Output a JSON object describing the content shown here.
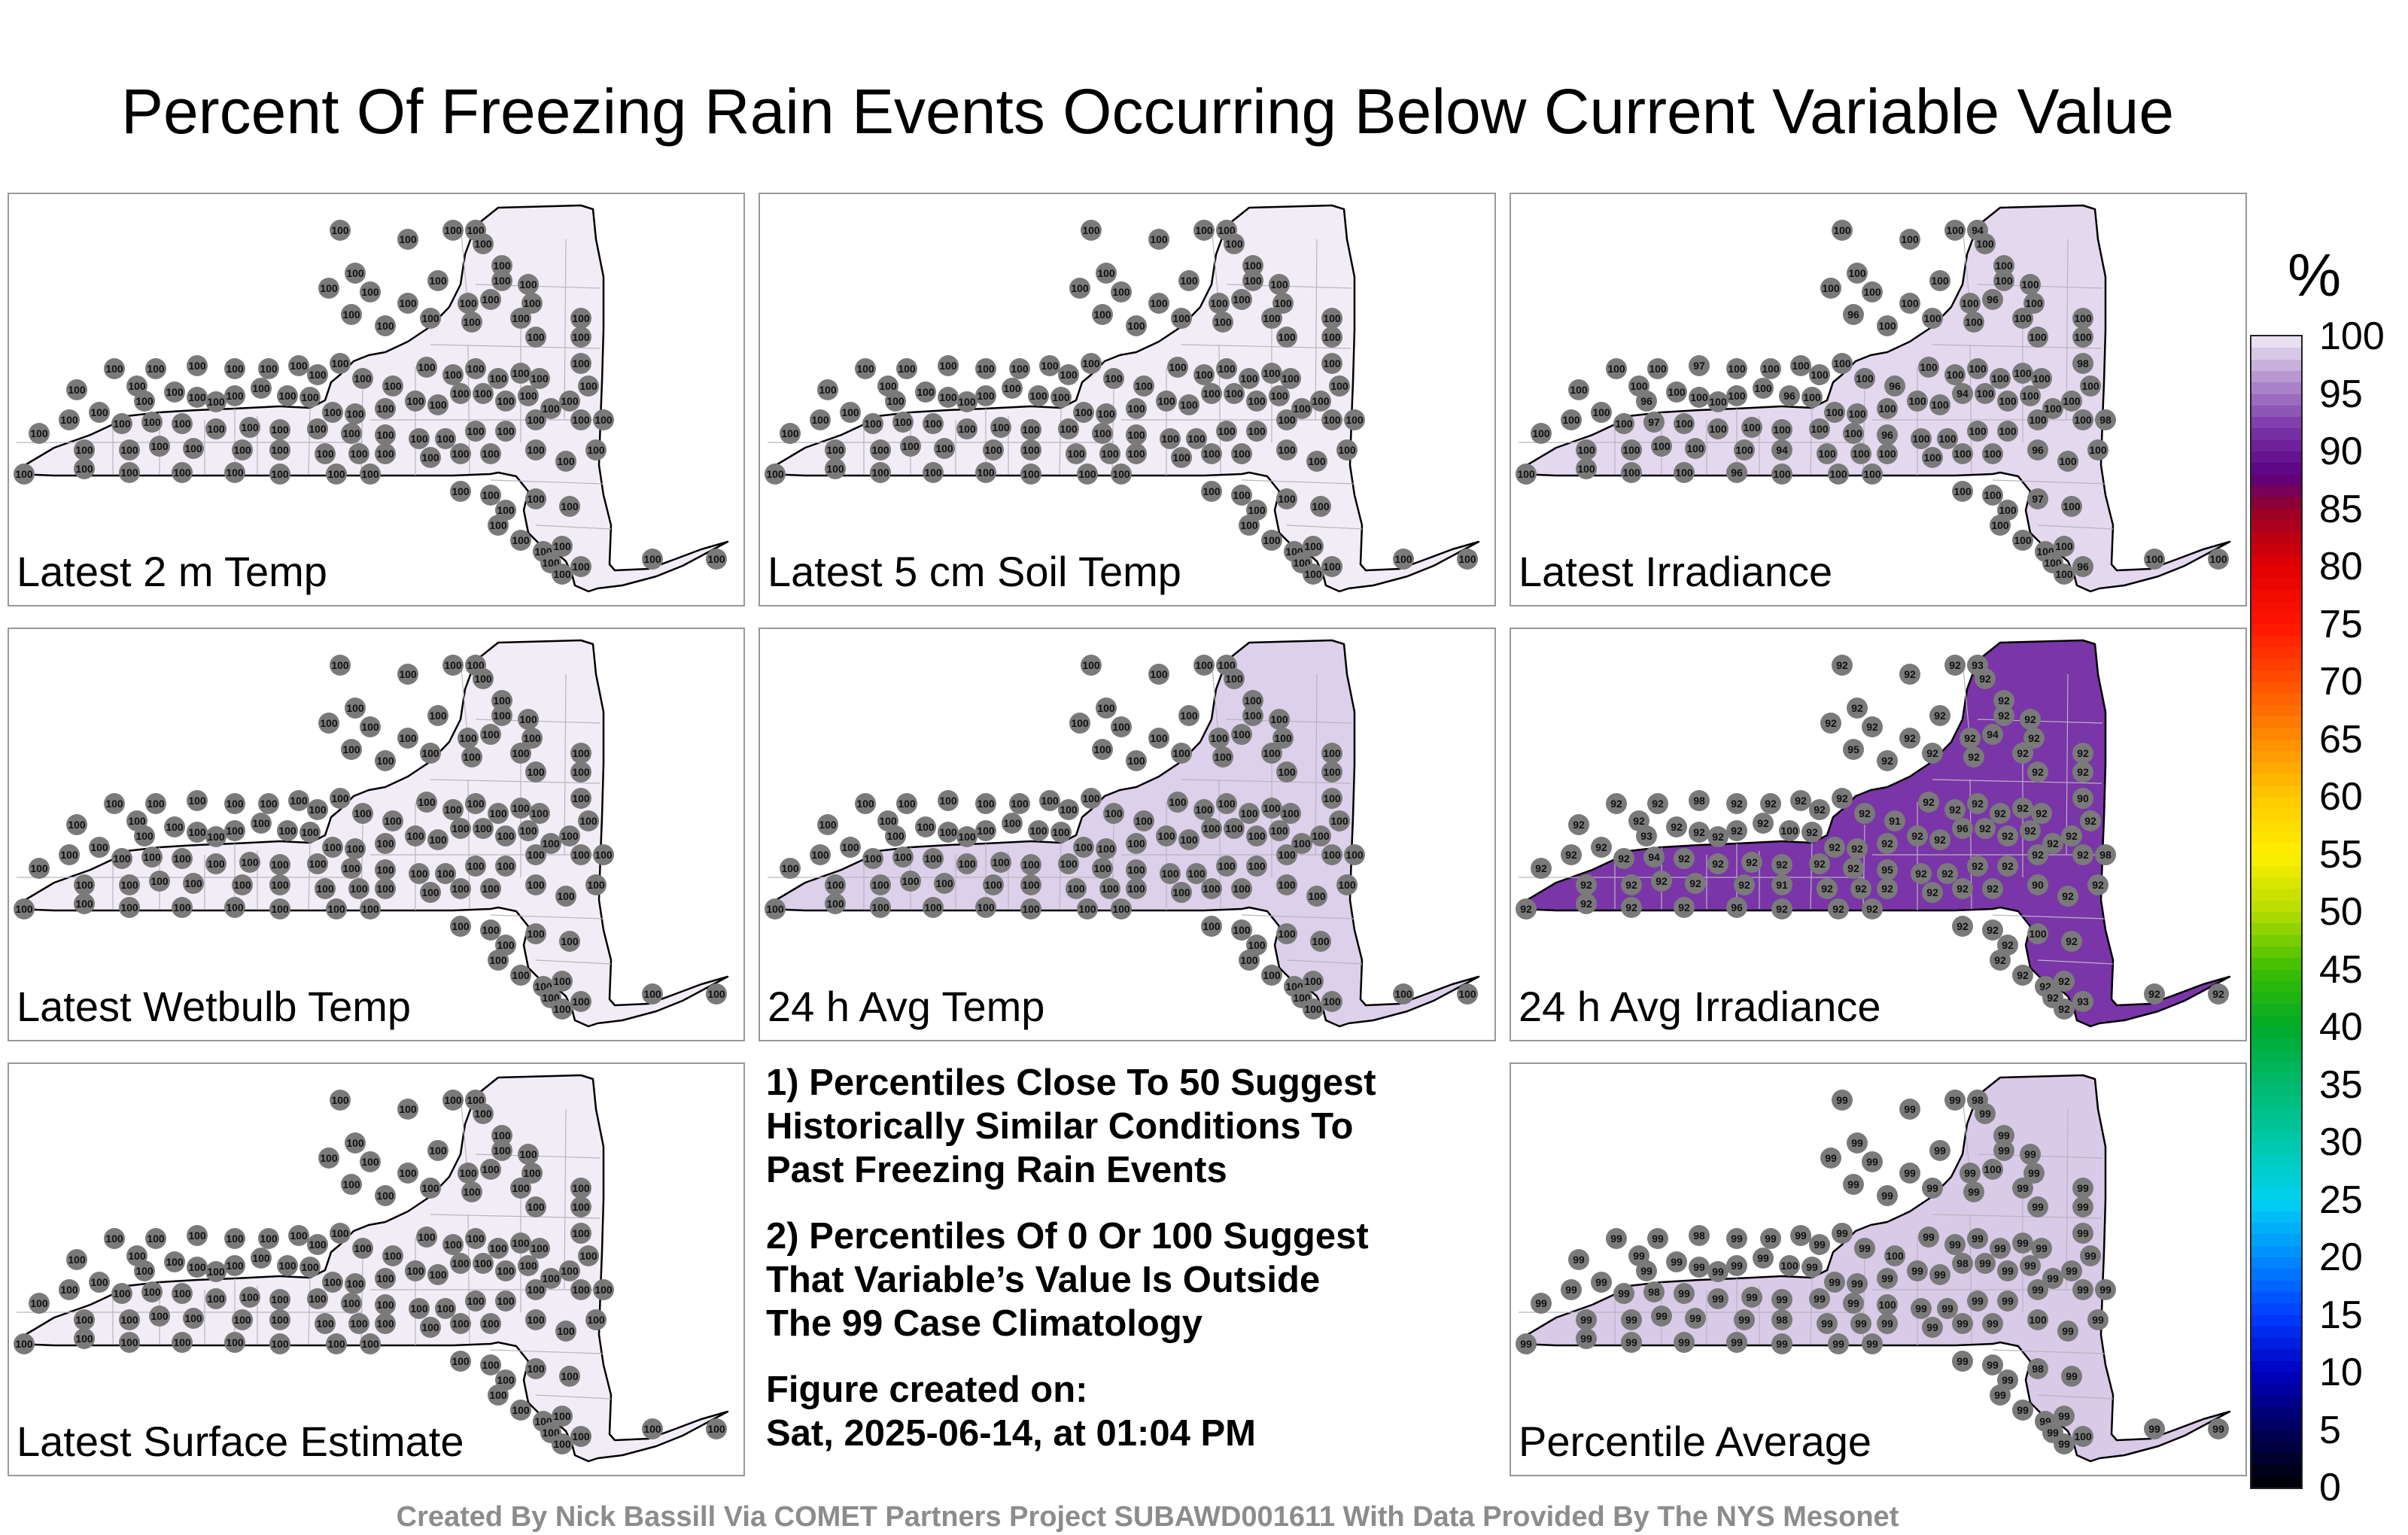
{
  "title": "Percent Of Freezing Rain Events Occurring Below Current Variable Value",
  "panels": [
    {
      "label": "Latest 2 m Temp",
      "station_value": "100",
      "field_level": 100,
      "fill_color": "#f1ecf6"
    },
    {
      "label": "Latest 5 cm Soil Temp",
      "station_value": "100",
      "field_level": 100,
      "fill_color": "#f1ecf6"
    },
    {
      "label": "Latest Irradiance",
      "station_value": "100",
      "field_level": 99,
      "fill_color": "#e4d8ee",
      "spot_values": [
        "94",
        "96",
        "96",
        "97",
        "96",
        "98"
      ]
    },
    {
      "label": "Latest Wetbulb Temp",
      "station_value": "100",
      "field_level": 100,
      "fill_color": "#f1ecf6"
    },
    {
      "label": "24 h Avg Temp",
      "station_value": "100",
      "field_level": 98,
      "fill_color": "#ddd0ea"
    },
    {
      "label": "24 h Avg Irradiance",
      "station_value": "92",
      "field_level": 92,
      "fill_color": "#7a35a8",
      "spot_values": [
        "93",
        "94",
        "95",
        "98",
        "91",
        "90",
        "96",
        "100"
      ]
    },
    {
      "label": "Latest Surface Estimate",
      "station_value": "100",
      "field_level": 100,
      "fill_color": "#f1ecf6"
    },
    {
      "label": "Percentile Average",
      "station_value": "99",
      "field_level": 99,
      "fill_color": "#d9cae8",
      "spot_values": [
        "98",
        "100",
        "99"
      ]
    }
  ],
  "notes": {
    "line1": "1) Percentiles Close To 50 Suggest",
    "line2": "Historically Similar Conditions To",
    "line3": "Past Freezing Rain Events",
    "line4": "2) Percentiles Of 0 Or 100 Suggest",
    "line5": "That Variable’s Value Is Outside",
    "line6": "The 99 Case Climatology",
    "fig_label": "Figure created on:",
    "fig_date": "Sat, 2025-06-14, at 01:04 PM"
  },
  "colorbar": {
    "unit": "%",
    "ticks": [
      "100",
      "95",
      "90",
      "85",
      "80",
      "75",
      "70",
      "65",
      "60",
      "55",
      "50",
      "45",
      "40",
      "35",
      "30",
      "25",
      "20",
      "15",
      "10",
      "5",
      "0"
    ]
  },
  "footer": "Created By Nick Bassill Via COMET Partners Project SUBAWD001611 With Data Provided By The NYS Mesonet"
}
